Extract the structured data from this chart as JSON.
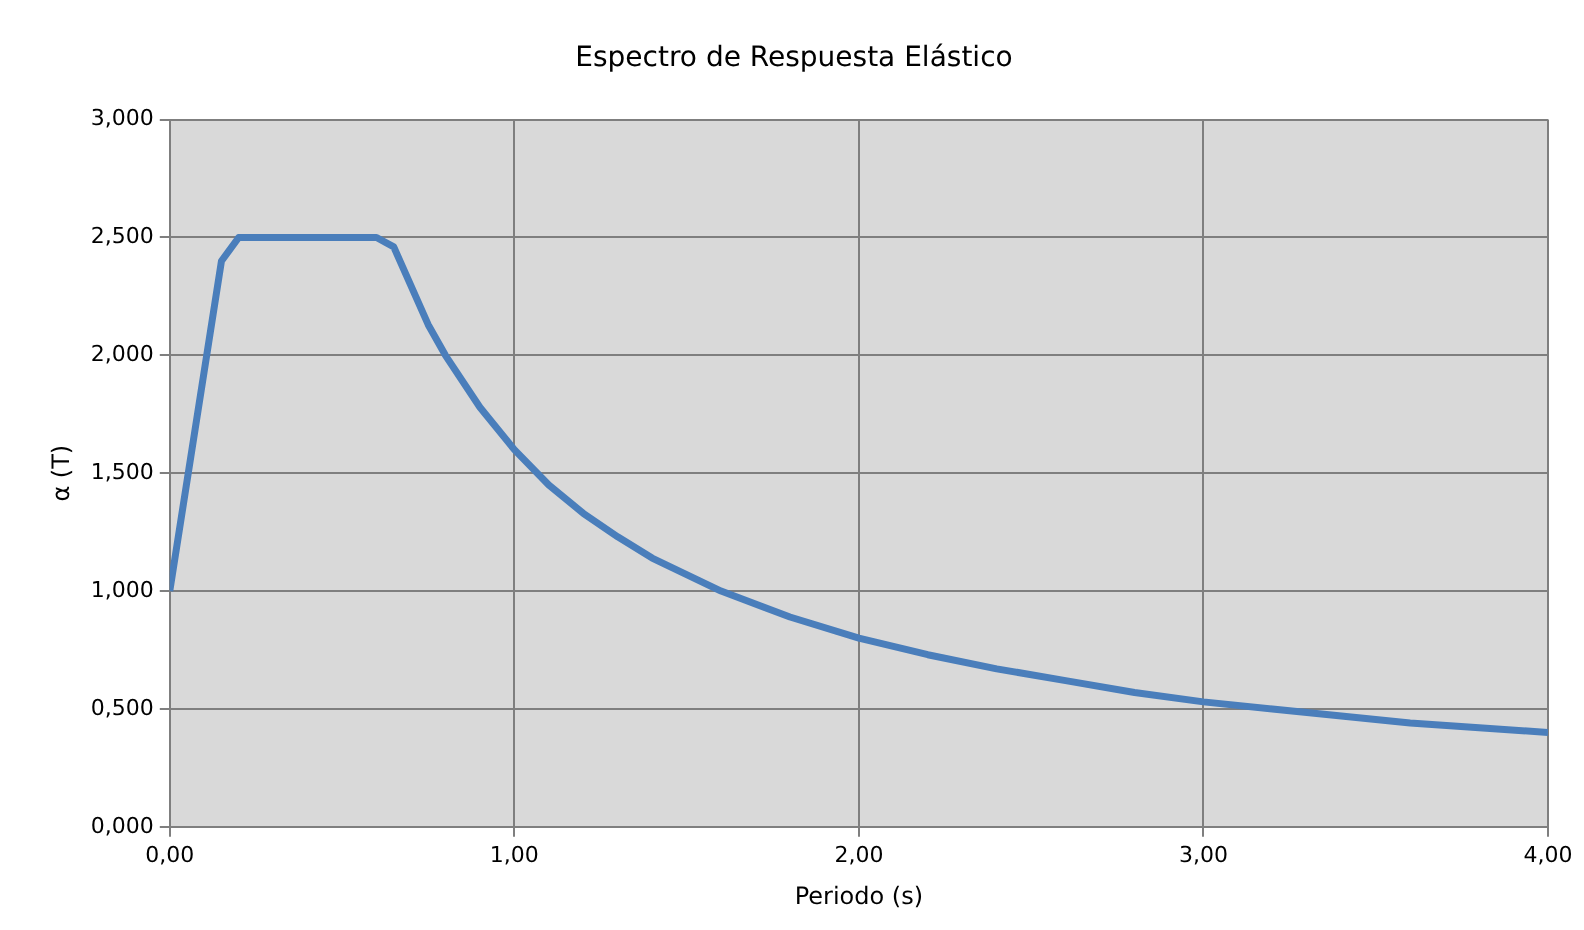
{
  "chart_data": {
    "type": "line",
    "title": "Espectro de Respuesta Elástico",
    "xlabel": "Periodo (s)",
    "ylabel": "α (T)",
    "x": [
      0,
      0.15,
      0.2,
      0.6,
      0.65,
      0.75,
      0.8,
      0.9,
      1.0,
      1.1,
      1.2,
      1.3,
      1.4,
      1.5,
      1.6,
      1.8,
      2.0,
      2.2,
      2.4,
      2.6,
      2.8,
      3.0,
      3.2,
      3.4,
      3.6,
      3.8,
      4.0
    ],
    "series": [
      {
        "color": "#4a7ebb",
        "values": [
          1.0,
          2.4,
          2.5,
          2.5,
          2.46,
          2.13,
          2.0,
          1.78,
          1.6,
          1.45,
          1.33,
          1.23,
          1.14,
          1.07,
          1.0,
          0.89,
          0.8,
          0.73,
          0.67,
          0.62,
          0.57,
          0.53,
          0.5,
          0.47,
          0.44,
          0.42,
          0.4
        ]
      }
    ],
    "xlim": [
      0,
      4
    ],
    "xticks": [
      {
        "value": 0,
        "label": "0,00"
      },
      {
        "value": 1,
        "label": "1,00"
      },
      {
        "value": 2,
        "label": "2,00"
      },
      {
        "value": 3,
        "label": "3,00"
      },
      {
        "value": 4,
        "label": "4,00"
      }
    ],
    "ylim": [
      0,
      3
    ],
    "yticks": [
      {
        "value": 0,
        "label": "0,000"
      },
      {
        "value": 0.5,
        "label": "0,500"
      },
      {
        "value": 1,
        "label": "1,000"
      },
      {
        "value": 1.5,
        "label": "1,500"
      },
      {
        "value": 2,
        "label": "2,000"
      },
      {
        "value": 2.5,
        "label": "2,500"
      },
      {
        "value": 3,
        "label": "3,000"
      }
    ],
    "grid": true,
    "legend": false,
    "marker": "none",
    "line_style": "solid"
  }
}
